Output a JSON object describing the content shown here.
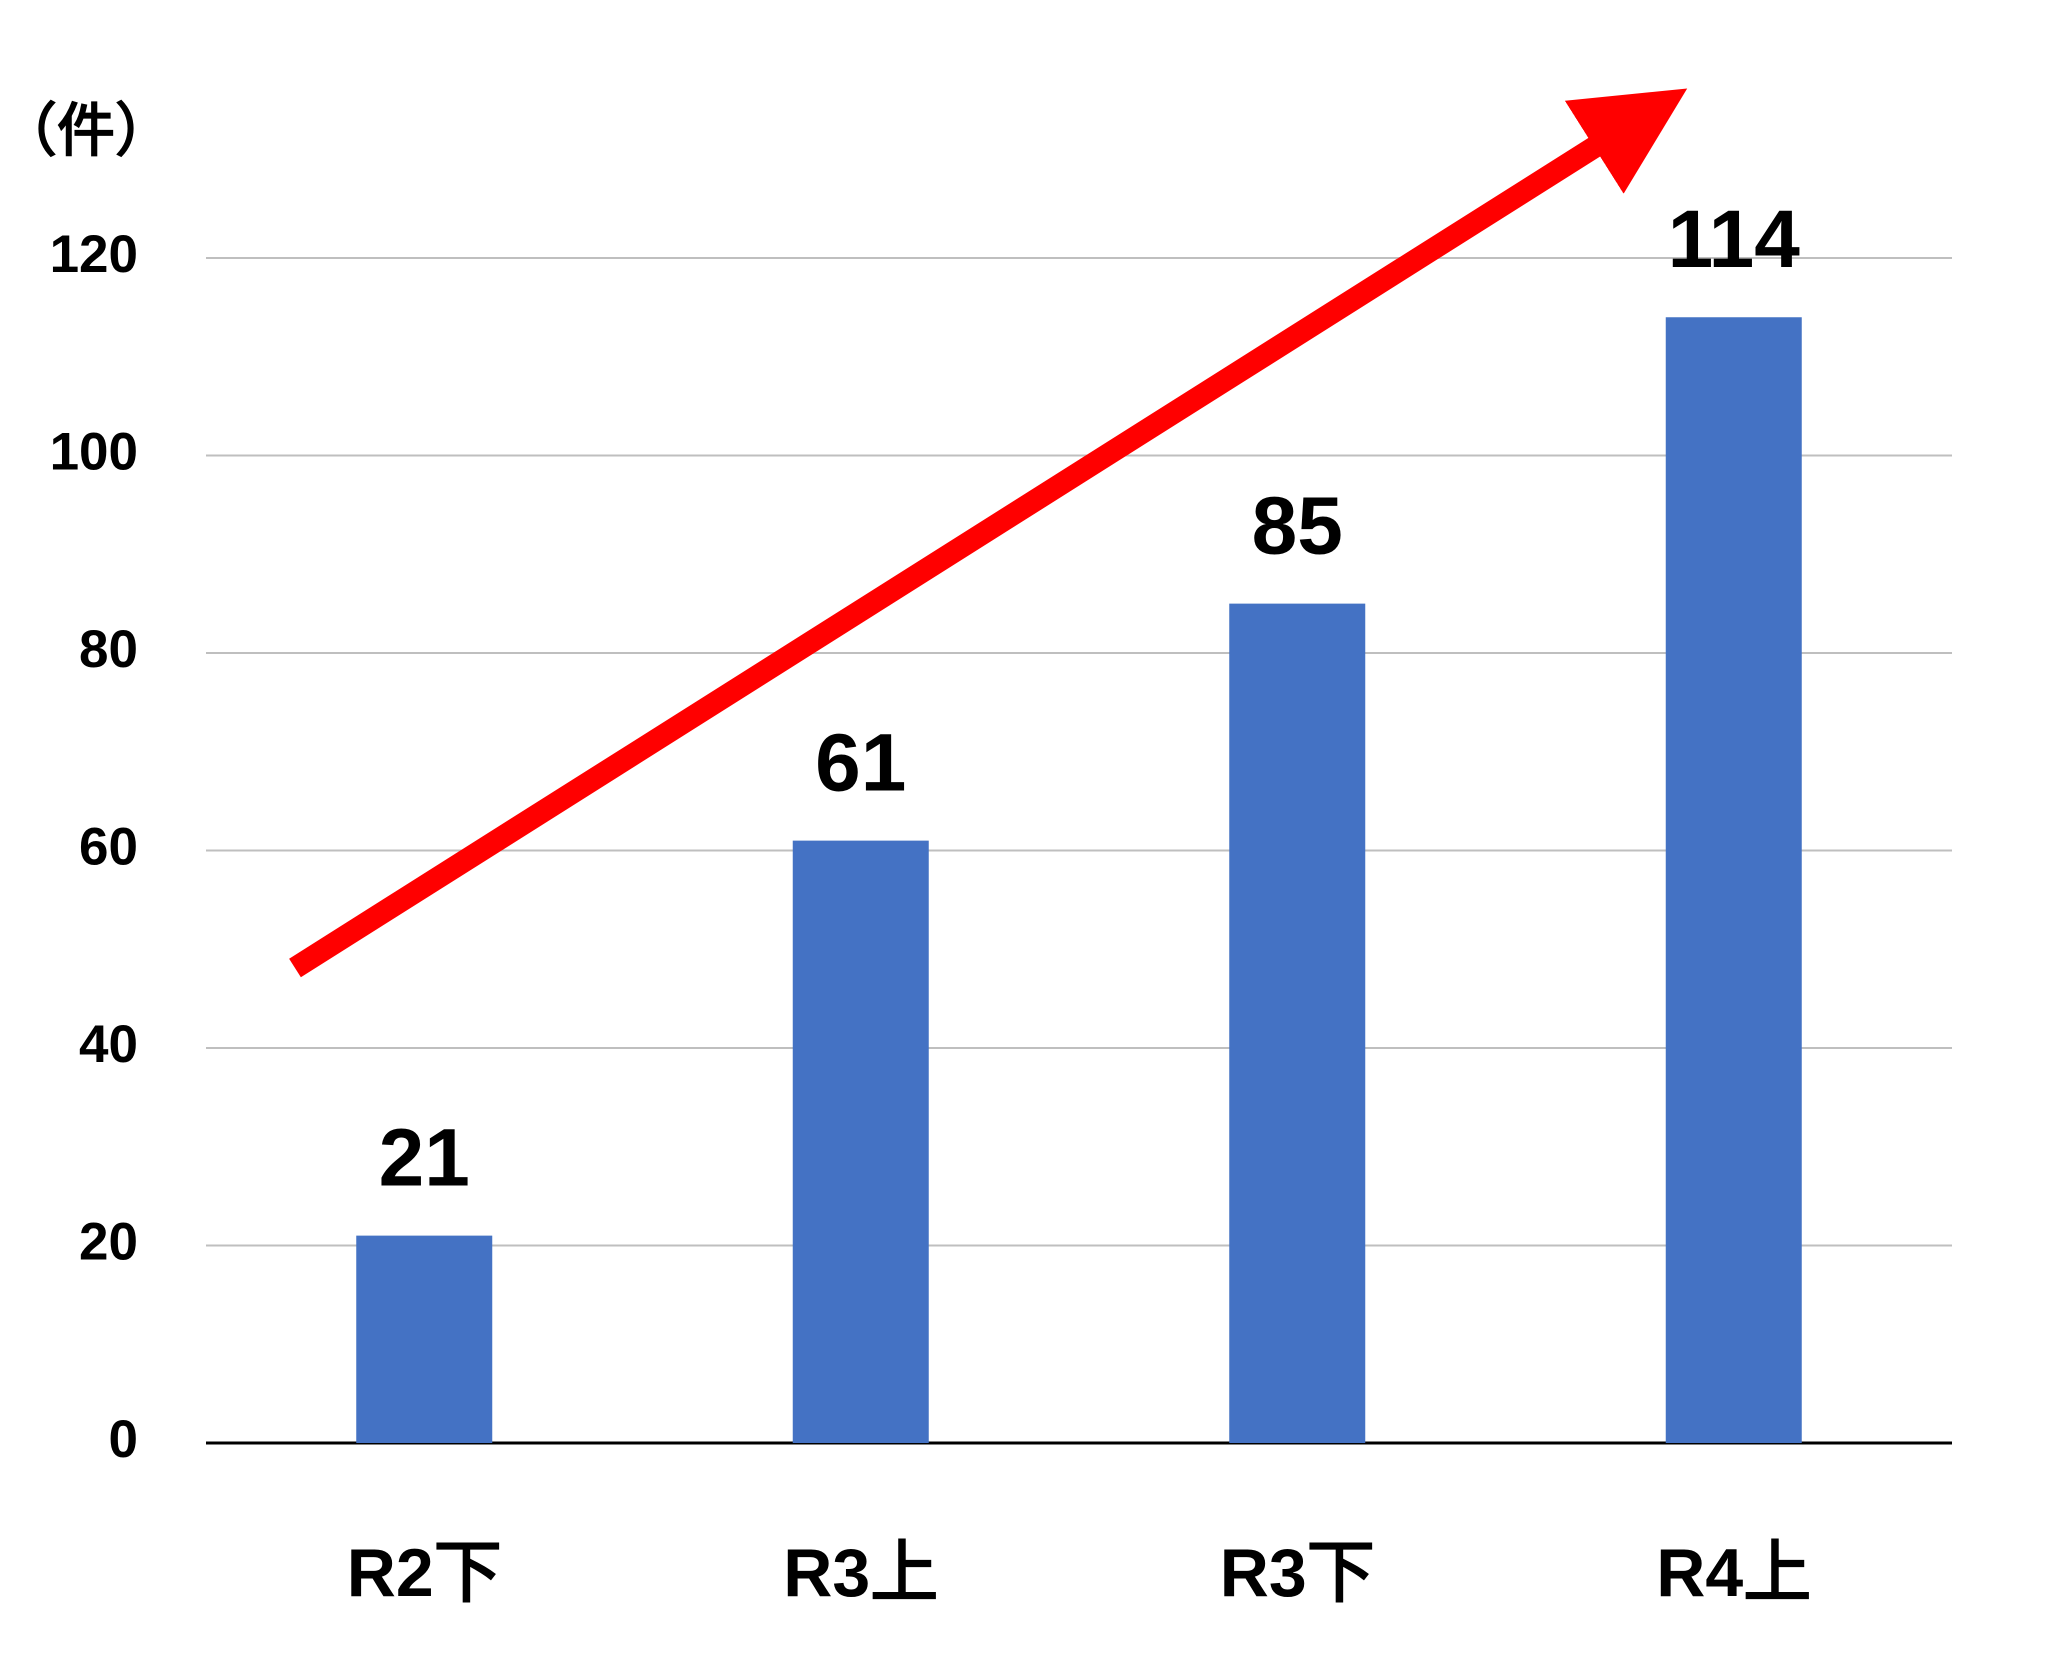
{
  "chart_data": {
    "type": "bar",
    "y_label": "（件）",
    "categories": [
      "R2下",
      "R3上",
      "R3下",
      "R4上"
    ],
    "values": [
      21,
      61,
      85,
      114
    ],
    "color": "#4472c4",
    "ylim": [
      0,
      120
    ],
    "yticks": [
      0,
      20,
      40,
      60,
      80,
      100,
      120
    ],
    "grid": true
  }
}
